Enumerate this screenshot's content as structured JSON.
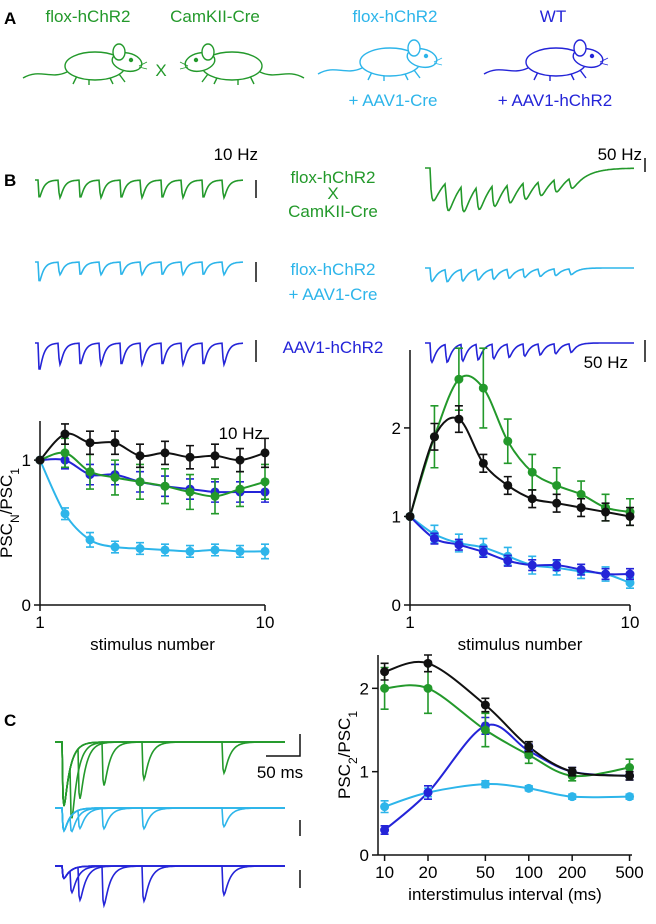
{
  "panel_labels": [
    "A",
    "B",
    "C"
  ],
  "mice": [
    {
      "label": "flox-hChR2",
      "color": "#23992b"
    },
    {
      "label": "CamKII-Cre",
      "color": "#23992b"
    },
    {
      "label": "flox-hChR2",
      "sublabel": "+ AAV1-Cre",
      "color": "#2db5ea"
    },
    {
      "label": "WT",
      "sublabel": "+ AAV1-hChR2",
      "color": "#2424d8"
    }
  ],
  "cross": "X",
  "traces": {
    "rate_labels": [
      "10 Hz",
      "50 Hz"
    ],
    "groups": [
      {
        "lines": [
          "flox-hChR2",
          "X",
          "CamKII-Cre"
        ],
        "color": "#23992b"
      },
      {
        "lines": [
          "flox-hChR2",
          "+ AAV1-Cre"
        ],
        "color": "#2db5ea"
      },
      {
        "lines": [
          "AAV1-hChR2"
        ],
        "color": "#2424d8"
      }
    ],
    "scale_bar": "50 ms"
  },
  "chart_data": [
    {
      "type": "line",
      "annotation": "10 Hz",
      "xlabel": "stimulus number",
      "ylabel": [
        "PSC",
        "N",
        "/PSC",
        "1"
      ],
      "x": [
        1,
        2,
        3,
        4,
        5,
        6,
        7,
        8,
        9,
        10
      ],
      "xlim": [
        1,
        10
      ],
      "xticks": [
        1,
        10
      ],
      "ylim": [
        0,
        1.27
      ],
      "yticks": [
        0,
        1
      ],
      "series": [
        {
          "color": "#2db5ea",
          "values": [
            1,
            0.63,
            0.45,
            0.4,
            0.39,
            0.38,
            0.37,
            0.38,
            0.37,
            0.37
          ],
          "errors": [
            0,
            0.04,
            0.05,
            0.04,
            0.04,
            0.04,
            0.04,
            0.04,
            0.04,
            0.05
          ]
        },
        {
          "color": "#2424d8",
          "values": [
            1,
            1.0,
            0.9,
            0.9,
            0.85,
            0.82,
            0.8,
            0.78,
            0.78,
            0.78
          ],
          "errors": [
            0,
            0.06,
            0.07,
            0.07,
            0.07,
            0.07,
            0.07,
            0.07,
            0.07,
            0.07
          ]
        },
        {
          "color": "#23992b",
          "values": [
            1,
            1.05,
            0.92,
            0.88,
            0.85,
            0.82,
            0.78,
            0.75,
            0.8,
            0.85
          ],
          "errors": [
            0,
            0.1,
            0.12,
            0.12,
            0.12,
            0.12,
            0.12,
            0.12,
            0.12,
            0.12
          ]
        },
        {
          "color": "#111111",
          "values": [
            1,
            1.18,
            1.12,
            1.12,
            1.03,
            1.05,
            1.02,
            1.03,
            1.0,
            1.05
          ],
          "errors": [
            0,
            0.07,
            0.08,
            0.08,
            0.08,
            0.08,
            0.08,
            0.08,
            0.08,
            0.1
          ]
        }
      ]
    },
    {
      "type": "line",
      "annotation": "50 Hz",
      "xlabel": "stimulus number",
      "x": [
        1,
        2,
        3,
        4,
        5,
        6,
        7,
        8,
        9,
        10
      ],
      "xlim": [
        1,
        10
      ],
      "xticks": [
        1,
        10
      ],
      "ylim": [
        0,
        2.88
      ],
      "yticks": [
        0,
        1,
        2
      ],
      "series": [
        {
          "color": "#2db5ea",
          "values": [
            1,
            0.8,
            0.7,
            0.65,
            0.55,
            0.45,
            0.42,
            0.38,
            0.35,
            0.25
          ],
          "errors": [
            0,
            0.1,
            0.1,
            0.1,
            0.1,
            0.1,
            0.08,
            0.08,
            0.08,
            0.06
          ]
        },
        {
          "color": "#2424d8",
          "values": [
            1,
            0.75,
            0.68,
            0.6,
            0.5,
            0.45,
            0.45,
            0.4,
            0.35,
            0.35
          ],
          "errors": [
            0,
            0.06,
            0.06,
            0.06,
            0.06,
            0.06,
            0.06,
            0.06,
            0.06,
            0.06
          ]
        },
        {
          "color": "#23992b",
          "values": [
            1,
            1.9,
            2.55,
            2.45,
            1.85,
            1.5,
            1.35,
            1.25,
            1.1,
            1.05
          ],
          "errors": [
            0,
            0.35,
            0.35,
            0.45,
            0.25,
            0.2,
            0.2,
            0.15,
            0.15,
            0.15
          ]
        },
        {
          "color": "#111111",
          "values": [
            1,
            1.9,
            2.1,
            1.6,
            1.35,
            1.2,
            1.15,
            1.1,
            1.05,
            1.0
          ],
          "errors": [
            0,
            0.15,
            0.15,
            0.1,
            0.1,
            0.1,
            0.1,
            0.1,
            0.1,
            0.1
          ]
        }
      ]
    },
    {
      "type": "line",
      "xlabel": "interstimulus interval (ms)",
      "ylabel": [
        "PSC",
        "2",
        "/PSC",
        "1"
      ],
      "xscale": "log",
      "x": [
        10,
        20,
        50,
        100,
        200,
        500
      ],
      "xlim": [
        9,
        520
      ],
      "xticks": [
        10,
        20,
        50,
        100,
        200,
        500
      ],
      "ylim": [
        0,
        2.4
      ],
      "yticks": [
        0,
        1,
        2
      ],
      "series": [
        {
          "color": "#2db5ea",
          "values": [
            0.58,
            0.75,
            0.85,
            0.8,
            0.7,
            0.7
          ],
          "errors": [
            0.07,
            0.05,
            0.04,
            0.03,
            0.03,
            0.03
          ]
        },
        {
          "color": "#2424d8",
          "values": [
            0.3,
            0.75,
            1.55,
            1.25,
            1.0,
            0.95
          ],
          "errors": [
            0.05,
            0.08,
            0.1,
            0.08,
            0.05,
            0.05
          ]
        },
        {
          "color": "#23992b",
          "values": [
            2.0,
            2.0,
            1.5,
            1.2,
            0.95,
            1.05
          ],
          "errors": [
            0.25,
            0.3,
            0.2,
            0.1,
            0.06,
            0.1
          ]
        },
        {
          "color": "#111111",
          "values": [
            2.2,
            2.3,
            1.8,
            1.3,
            1.0,
            0.95
          ],
          "errors": [
            0.1,
            0.1,
            0.08,
            0.06,
            0.05,
            0.05
          ]
        }
      ]
    }
  ]
}
